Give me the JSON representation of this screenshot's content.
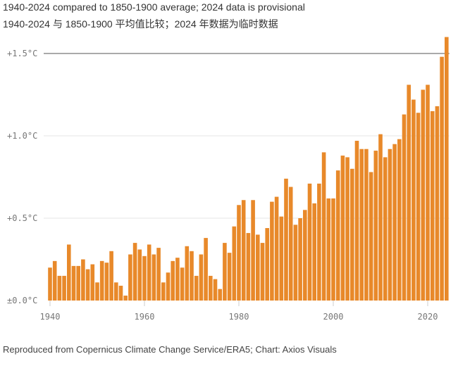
{
  "chart_data": {
    "type": "bar",
    "title": "1940-2024 compared to 1850-1900 average; 2024 data is provisional",
    "subtitle": "1940-2024 与 1850-1900 平均值比较；2024 年数据为临时数据",
    "source": "Reproduced from Copernicus Climate Change Service/ERA5; Chart: Axios Visuals",
    "xlabel": "",
    "ylabel": "",
    "x_start": 1940,
    "x_end": 2024,
    "x_ticks": [
      1940,
      1960,
      1980,
      2000,
      2020
    ],
    "y_ticks": [
      {
        "value": 0,
        "label": "±0.0°C"
      },
      {
        "value": 0.5,
        "label": "+0.5°C"
      },
      {
        "value": 1.0,
        "label": "+1.0°C"
      },
      {
        "value": 1.5,
        "label": "+1.5°C"
      }
    ],
    "ylim": [
      0,
      1.6
    ],
    "grid": true,
    "bar_color": "#e8892a",
    "values": [
      0.2,
      0.24,
      0.15,
      0.15,
      0.34,
      0.21,
      0.21,
      0.25,
      0.19,
      0.22,
      0.11,
      0.24,
      0.23,
      0.3,
      0.11,
      0.09,
      0.03,
      0.28,
      0.35,
      0.31,
      0.27,
      0.34,
      0.28,
      0.32,
      0.11,
      0.17,
      0.24,
      0.26,
      0.2,
      0.33,
      0.3,
      0.15,
      0.28,
      0.38,
      0.15,
      0.13,
      0.07,
      0.35,
      0.29,
      0.45,
      0.58,
      0.61,
      0.41,
      0.61,
      0.4,
      0.35,
      0.44,
      0.6,
      0.63,
      0.51,
      0.74,
      0.69,
      0.46,
      0.5,
      0.55,
      0.71,
      0.59,
      0.71,
      0.9,
      0.62,
      0.62,
      0.79,
      0.88,
      0.87,
      0.8,
      0.97,
      0.92,
      0.92,
      0.78,
      0.91,
      1.01,
      0.87,
      0.92,
      0.95,
      0.98,
      1.13,
      1.31,
      1.22,
      1.14,
      1.28,
      1.31,
      1.15,
      1.18,
      1.48,
      1.6
    ]
  }
}
